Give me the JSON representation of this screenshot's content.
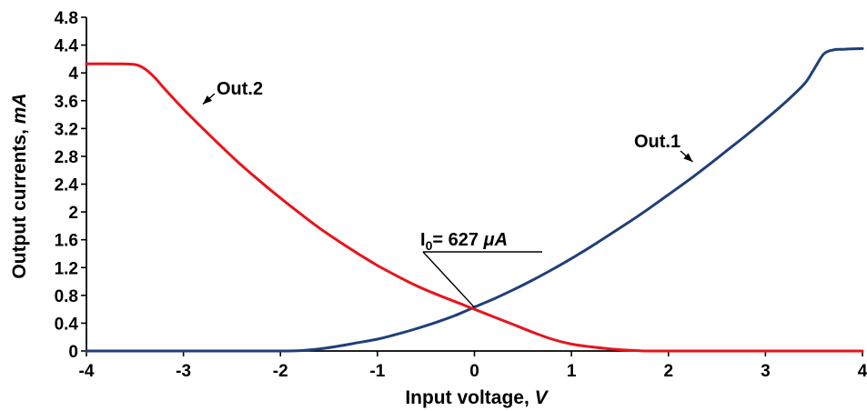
{
  "chart_data": {
    "type": "line",
    "title": "",
    "xlabel_text": "Input voltage, ",
    "xlabel_unit": "V",
    "ylabel_text": "Output currents, ",
    "ylabel_unit": "mA",
    "xlim": [
      -4,
      4
    ],
    "ylim": [
      0,
      4.8
    ],
    "x_ticks": [
      "-4",
      "-3",
      "-2",
      "-1",
      "0",
      "1",
      "2",
      "3",
      "4"
    ],
    "y_ticks": [
      "0",
      "0.4",
      "0.8",
      "1.2",
      "1.6",
      "2",
      "2.4",
      "2.8",
      "3.2",
      "3.6",
      "4",
      "4.4",
      "4.8"
    ],
    "grid": false,
    "series": [
      {
        "name": "Out.1",
        "color": "#1f3f7a",
        "x": [
          -4,
          -3,
          -2,
          -1.8,
          -1.6,
          -1.4,
          -1.2,
          -1,
          -0.8,
          -0.6,
          -0.4,
          -0.2,
          0,
          0.2,
          0.4,
          0.6,
          0.8,
          1,
          1.2,
          1.4,
          1.6,
          1.8,
          2,
          2.2,
          2.4,
          2.6,
          2.8,
          3,
          3.2,
          3.4,
          3.5,
          3.6,
          3.7,
          3.8,
          4
        ],
        "y": [
          0,
          0,
          0,
          0.005,
          0.03,
          0.07,
          0.12,
          0.17,
          0.24,
          0.32,
          0.41,
          0.51,
          0.63,
          0.75,
          0.88,
          1.02,
          1.17,
          1.33,
          1.5,
          1.68,
          1.86,
          2.05,
          2.25,
          2.45,
          2.66,
          2.88,
          3.1,
          3.33,
          3.57,
          3.84,
          4.05,
          4.27,
          4.33,
          4.34,
          4.35
        ]
      },
      {
        "name": "Out.2",
        "color": "#e8141b",
        "x": [
          -4,
          -3.7,
          -3.5,
          -3.4,
          -3.3,
          -3.2,
          -3,
          -2.8,
          -2.6,
          -2.4,
          -2.2,
          -2,
          -1.8,
          -1.6,
          -1.4,
          -1.2,
          -1,
          -0.8,
          -0.6,
          -0.4,
          -0.2,
          0,
          0.2,
          0.4,
          0.6,
          0.8,
          1,
          1.2,
          1.4,
          1.6,
          1.8,
          2,
          3,
          4
        ],
        "y": [
          4.13,
          4.13,
          4.12,
          4.06,
          3.94,
          3.78,
          3.48,
          3.2,
          2.93,
          2.67,
          2.43,
          2.2,
          1.98,
          1.77,
          1.58,
          1.4,
          1.23,
          1.08,
          0.94,
          0.82,
          0.71,
          0.6,
          0.49,
          0.38,
          0.27,
          0.17,
          0.1,
          0.06,
          0.03,
          0.01,
          0,
          0,
          0,
          0
        ]
      }
    ],
    "annotations": [
      {
        "label": "Out.2",
        "series": "Out.2"
      },
      {
        "label": "Out.1",
        "series": "Out.1"
      },
      {
        "label_main": "I",
        "label_sub": "0",
        "label_rest": "= 627 ",
        "label_unit": "μA",
        "x": 0,
        "y": 0.627
      }
    ]
  }
}
